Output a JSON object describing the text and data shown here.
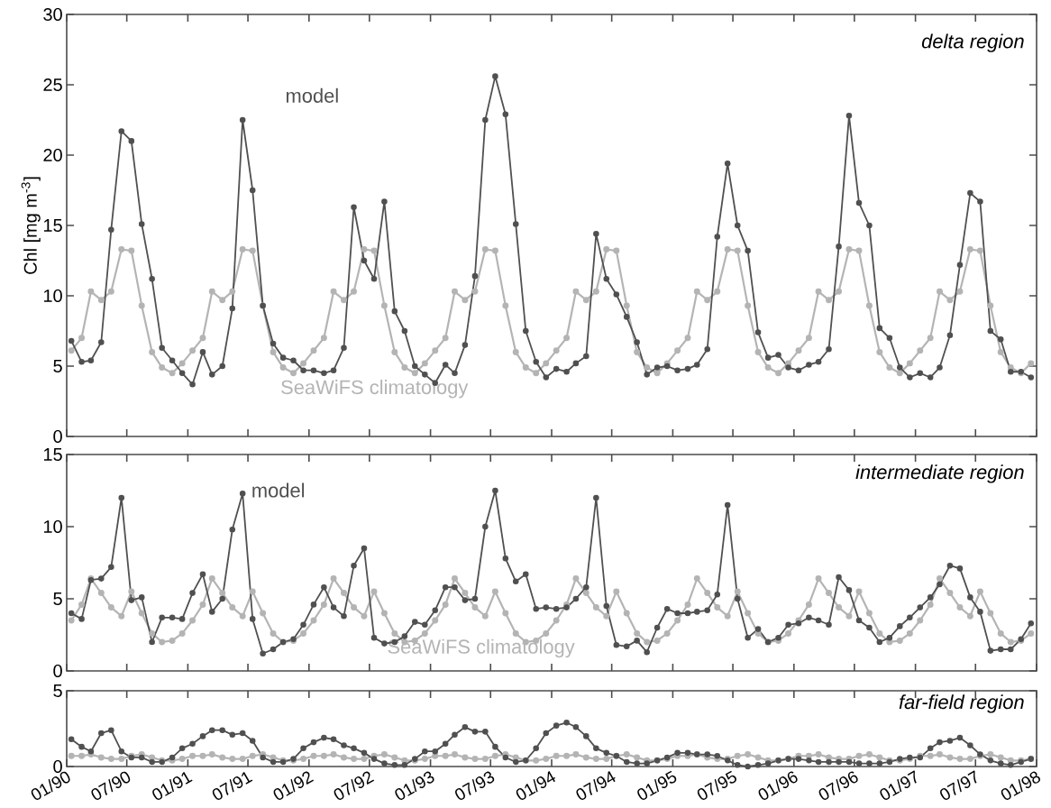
{
  "chart_data": [
    {
      "type": "line",
      "title": "delta region",
      "ylabel": "Chl [mg m$^{-3}$]",
      "marker": "circle",
      "tick_labels": "y",
      "x": [
        "1990-01-15",
        "1990-02-15",
        "1990-03-15",
        "1990-04-15",
        "1990-05-15",
        "1990-06-15",
        "1990-07-15",
        "1990-08-15",
        "1990-09-15",
        "1990-10-15",
        "1990-11-15",
        "1990-12-15",
        "1991-01-15",
        "1991-02-15",
        "1991-03-15",
        "1991-04-15",
        "1991-05-15",
        "1991-06-15",
        "1991-07-15",
        "1991-08-15",
        "1991-09-15",
        "1991-10-15",
        "1991-11-15",
        "1991-12-15",
        "1992-01-15",
        "1992-02-15",
        "1992-03-15",
        "1992-04-15",
        "1992-05-15",
        "1992-06-15",
        "1992-07-15",
        "1992-08-15",
        "1992-09-15",
        "1992-10-15",
        "1992-11-15",
        "1992-12-15",
        "1993-01-15",
        "1993-02-15",
        "1993-03-15",
        "1993-04-15",
        "1993-05-15",
        "1993-06-15",
        "1993-07-15",
        "1993-08-15",
        "1993-09-15",
        "1993-10-15",
        "1993-11-15",
        "1993-12-15",
        "1994-01-15",
        "1994-02-15",
        "1994-03-15",
        "1994-04-15",
        "1994-05-15",
        "1994-06-15",
        "1994-07-15",
        "1994-08-15",
        "1994-09-15",
        "1994-10-15",
        "1994-11-15",
        "1994-12-15",
        "1995-01-15",
        "1995-02-15",
        "1995-03-15",
        "1995-04-15",
        "1995-05-15",
        "1995-06-15",
        "1995-07-15",
        "1995-08-15",
        "1995-09-15",
        "1995-10-15",
        "1995-11-15",
        "1995-12-15",
        "1996-01-15",
        "1996-02-15",
        "1996-03-15",
        "1996-04-15",
        "1996-05-15",
        "1996-06-15",
        "1996-07-15",
        "1996-08-15",
        "1996-09-15",
        "1996-10-15",
        "1996-11-15",
        "1996-12-15",
        "1997-01-15",
        "1997-02-15",
        "1997-03-15",
        "1997-04-15",
        "1997-05-15",
        "1997-06-15",
        "1997-07-15",
        "1997-08-15",
        "1997-09-15",
        "1997-10-15",
        "1997-11-15",
        "1997-12-15"
      ],
      "xlim": [
        "1990-01-01",
        "1998-01-01"
      ],
      "xticks": [
        {
          "value": "1990-01-01",
          "label": null
        },
        {
          "value": "1990-07-01",
          "label": null
        },
        {
          "value": "1991-01-01",
          "label": null
        },
        {
          "value": "1991-07-01",
          "label": null
        },
        {
          "value": "1992-01-01",
          "label": null
        },
        {
          "value": "1992-07-01",
          "label": null
        },
        {
          "value": "1993-01-01",
          "label": null
        },
        {
          "value": "1993-07-01",
          "label": null
        },
        {
          "value": "1994-01-01",
          "label": null
        },
        {
          "value": "1994-07-01",
          "label": null
        },
        {
          "value": "1995-01-01",
          "label": null
        },
        {
          "value": "1995-07-01",
          "label": null
        },
        {
          "value": "1996-01-01",
          "label": null
        },
        {
          "value": "1996-07-01",
          "label": null
        },
        {
          "value": "1997-01-01",
          "label": null
        },
        {
          "value": "1997-07-01",
          "label": null
        },
        {
          "value": "1998-01-01",
          "label": null
        }
      ],
      "ylim": [
        0,
        30
      ],
      "yticks": [
        0,
        5,
        10,
        15,
        20,
        25,
        30
      ],
      "series": [
        {
          "name": "SeaWiFS climatology",
          "color": "#b4b4b4",
          "values": [
            6.1,
            7.0,
            10.3,
            9.7,
            10.3,
            13.3,
            13.2,
            9.3,
            6.0,
            4.9,
            4.5,
            5.2,
            6.1,
            7.0,
            10.3,
            9.7,
            10.3,
            13.3,
            13.2,
            9.3,
            6.0,
            4.9,
            4.5,
            5.2,
            6.1,
            7.0,
            10.3,
            9.7,
            10.3,
            13.3,
            13.2,
            9.3,
            6.0,
            4.9,
            4.5,
            5.2,
            6.1,
            7.0,
            10.3,
            9.7,
            10.3,
            13.3,
            13.2,
            9.3,
            6.0,
            4.9,
            4.5,
            5.2,
            6.1,
            7.0,
            10.3,
            9.7,
            10.3,
            13.3,
            13.2,
            9.3,
            6.0,
            4.9,
            4.5,
            5.2,
            6.1,
            7.0,
            10.3,
            9.7,
            10.3,
            13.3,
            13.2,
            9.3,
            6.0,
            4.9,
            4.5,
            5.2,
            6.1,
            7.0,
            10.3,
            9.7,
            10.3,
            13.3,
            13.2,
            9.3,
            6.0,
            4.9,
            4.5,
            5.2,
            6.1,
            7.0,
            10.3,
            9.7,
            10.3,
            13.3,
            13.2,
            9.3,
            6.0,
            4.9,
            4.5,
            5.2
          ]
        },
        {
          "name": "model",
          "color": "#505050",
          "values": [
            6.8,
            5.3,
            5.4,
            6.7,
            14.7,
            21.7,
            21.0,
            15.1,
            11.2,
            6.3,
            5.4,
            4.5,
            3.7,
            6.0,
            4.4,
            5.0,
            9.1,
            22.5,
            17.5,
            9.3,
            6.6,
            5.6,
            5.4,
            4.7,
            4.7,
            4.5,
            4.7,
            6.3,
            16.3,
            12.5,
            11.2,
            16.7,
            8.9,
            7.5,
            5.0,
            4.4,
            3.8,
            5.1,
            4.5,
            6.5,
            11.4,
            22.5,
            25.6,
            22.9,
            15.1,
            7.5,
            5.3,
            4.2,
            4.8,
            4.6,
            5.2,
            5.7,
            14.4,
            11.2,
            10.1,
            8.5,
            6.7,
            4.4,
            4.9,
            5.0,
            4.7,
            4.8,
            5.1,
            6.2,
            14.2,
            19.4,
            15.0,
            13.2,
            7.4,
            5.6,
            5.8,
            4.9,
            4.7,
            5.1,
            5.3,
            6.2,
            13.5,
            22.8,
            16.6,
            15.0,
            7.7,
            7.0,
            4.9,
            4.2,
            4.5,
            4.2,
            4.9,
            7.2,
            12.2,
            17.3,
            16.7,
            7.5,
            6.9,
            4.6,
            4.6,
            4.2
          ]
        }
      ]
    },
    {
      "type": "line",
      "title": "intermediate region",
      "marker": "circle",
      "tick_labels": "y",
      "x": [
        "1990-01-15",
        "1990-02-15",
        "1990-03-15",
        "1990-04-15",
        "1990-05-15",
        "1990-06-15",
        "1990-07-15",
        "1990-08-15",
        "1990-09-15",
        "1990-10-15",
        "1990-11-15",
        "1990-12-15",
        "1991-01-15",
        "1991-02-15",
        "1991-03-15",
        "1991-04-15",
        "1991-05-15",
        "1991-06-15",
        "1991-07-15",
        "1991-08-15",
        "1991-09-15",
        "1991-10-15",
        "1991-11-15",
        "1991-12-15",
        "1992-01-15",
        "1992-02-15",
        "1992-03-15",
        "1992-04-15",
        "1992-05-15",
        "1992-06-15",
        "1992-07-15",
        "1992-08-15",
        "1992-09-15",
        "1992-10-15",
        "1992-11-15",
        "1992-12-15",
        "1993-01-15",
        "1993-02-15",
        "1993-03-15",
        "1993-04-15",
        "1993-05-15",
        "1993-06-15",
        "1993-07-15",
        "1993-08-15",
        "1993-09-15",
        "1993-10-15",
        "1993-11-15",
        "1993-12-15",
        "1994-01-15",
        "1994-02-15",
        "1994-03-15",
        "1994-04-15",
        "1994-05-15",
        "1994-06-15",
        "1994-07-15",
        "1994-08-15",
        "1994-09-15",
        "1994-10-15",
        "1994-11-15",
        "1994-12-15",
        "1995-01-15",
        "1995-02-15",
        "1995-03-15",
        "1995-04-15",
        "1995-05-15",
        "1995-06-15",
        "1995-07-15",
        "1995-08-15",
        "1995-09-15",
        "1995-10-15",
        "1995-11-15",
        "1995-12-15",
        "1996-01-15",
        "1996-02-15",
        "1996-03-15",
        "1996-04-15",
        "1996-05-15",
        "1996-06-15",
        "1996-07-15",
        "1996-08-15",
        "1996-09-15",
        "1996-10-15",
        "1996-11-15",
        "1996-12-15",
        "1997-01-15",
        "1997-02-15",
        "1997-03-15",
        "1997-04-15",
        "1997-05-15",
        "1997-06-15",
        "1997-07-15",
        "1997-08-15",
        "1997-09-15",
        "1997-10-15",
        "1997-11-15",
        "1997-12-15"
      ],
      "xlim": [
        "1990-01-01",
        "1998-01-01"
      ],
      "xticks": [
        {
          "value": "1990-01-01",
          "label": null
        },
        {
          "value": "1990-07-01",
          "label": null
        },
        {
          "value": "1991-01-01",
          "label": null
        },
        {
          "value": "1991-07-01",
          "label": null
        },
        {
          "value": "1992-01-01",
          "label": null
        },
        {
          "value": "1992-07-01",
          "label": null
        },
        {
          "value": "1993-01-01",
          "label": null
        },
        {
          "value": "1993-07-01",
          "label": null
        },
        {
          "value": "1994-01-01",
          "label": null
        },
        {
          "value": "1994-07-01",
          "label": null
        },
        {
          "value": "1995-01-01",
          "label": null
        },
        {
          "value": "1995-07-01",
          "label": null
        },
        {
          "value": "1996-01-01",
          "label": null
        },
        {
          "value": "1996-07-01",
          "label": null
        },
        {
          "value": "1997-01-01",
          "label": null
        },
        {
          "value": "1997-07-01",
          "label": null
        },
        {
          "value": "1998-01-01",
          "label": null
        }
      ],
      "ylim": [
        0,
        15
      ],
      "yticks": [
        0,
        5,
        10,
        15
      ],
      "series": [
        {
          "name": "SeaWiFS climatology",
          "color": "#b4b4b4",
          "values": [
            3.5,
            4.6,
            6.4,
            5.4,
            4.4,
            3.8,
            5.5,
            4.0,
            2.6,
            2.0,
            2.1,
            2.6,
            3.5,
            4.6,
            6.4,
            5.4,
            4.4,
            3.8,
            5.5,
            4.0,
            2.6,
            2.0,
            2.1,
            2.6,
            3.5,
            4.6,
            6.4,
            5.4,
            4.4,
            3.8,
            5.5,
            4.0,
            2.6,
            2.0,
            2.1,
            2.6,
            3.5,
            4.6,
            6.4,
            5.4,
            4.4,
            3.8,
            5.5,
            4.0,
            2.6,
            2.0,
            2.1,
            2.6,
            3.5,
            4.6,
            6.4,
            5.4,
            4.4,
            3.8,
            5.5,
            4.0,
            2.6,
            2.0,
            2.1,
            2.6,
            3.5,
            4.6,
            6.4,
            5.4,
            4.4,
            3.8,
            5.5,
            4.0,
            2.6,
            2.0,
            2.1,
            2.6,
            3.5,
            4.6,
            6.4,
            5.4,
            4.4,
            3.8,
            5.5,
            4.0,
            2.6,
            2.0,
            2.1,
            2.6,
            3.5,
            4.6,
            6.4,
            5.4,
            4.4,
            3.8,
            5.5,
            4.0,
            2.6,
            2.0,
            2.1,
            2.6
          ]
        },
        {
          "name": "model",
          "color": "#505050",
          "values": [
            4.0,
            3.6,
            6.3,
            6.4,
            7.2,
            12.0,
            4.9,
            5.1,
            2.0,
            3.7,
            3.7,
            3.6,
            5.4,
            6.7,
            4.1,
            5.0,
            9.8,
            12.3,
            3.6,
            1.2,
            1.5,
            2.0,
            2.2,
            3.2,
            4.6,
            5.8,
            4.4,
            3.8,
            7.3,
            8.5,
            2.3,
            1.9,
            2.0,
            2.4,
            3.4,
            3.2,
            4.2,
            5.8,
            5.8,
            4.9,
            5.0,
            10.0,
            12.5,
            7.8,
            6.2,
            6.7,
            4.3,
            4.4,
            4.3,
            4.4,
            5.0,
            5.8,
            12.0,
            4.5,
            1.8,
            1.7,
            2.1,
            1.3,
            3.0,
            4.3,
            4.0,
            4.0,
            4.1,
            4.2,
            5.3,
            11.5,
            5.0,
            2.3,
            2.9,
            2.0,
            2.3,
            3.2,
            3.3,
            3.7,
            3.5,
            3.2,
            6.5,
            5.6,
            3.5,
            3.0,
            2.0,
            2.3,
            3.1,
            3.7,
            4.4,
            5.1,
            6.0,
            7.3,
            7.1,
            5.1,
            4.1,
            1.4,
            1.5,
            1.5,
            2.2,
            3.3
          ]
        }
      ]
    },
    {
      "type": "line",
      "title": "far-field region",
      "marker": "circle",
      "x": [
        "1990-01-15",
        "1990-02-15",
        "1990-03-15",
        "1990-04-15",
        "1990-05-15",
        "1990-06-15",
        "1990-07-15",
        "1990-08-15",
        "1990-09-15",
        "1990-10-15",
        "1990-11-15",
        "1990-12-15",
        "1991-01-15",
        "1991-02-15",
        "1991-03-15",
        "1991-04-15",
        "1991-05-15",
        "1991-06-15",
        "1991-07-15",
        "1991-08-15",
        "1991-09-15",
        "1991-10-15",
        "1991-11-15",
        "1991-12-15",
        "1992-01-15",
        "1992-02-15",
        "1992-03-15",
        "1992-04-15",
        "1992-05-15",
        "1992-06-15",
        "1992-07-15",
        "1992-08-15",
        "1992-09-15",
        "1992-10-15",
        "1992-11-15",
        "1992-12-15",
        "1993-01-15",
        "1993-02-15",
        "1993-03-15",
        "1993-04-15",
        "1993-05-15",
        "1993-06-15",
        "1993-07-15",
        "1993-08-15",
        "1993-09-15",
        "1993-10-15",
        "1993-11-15",
        "1993-12-15",
        "1994-01-15",
        "1994-02-15",
        "1994-03-15",
        "1994-04-15",
        "1994-05-15",
        "1994-06-15",
        "1994-07-15",
        "1994-08-15",
        "1994-09-15",
        "1994-10-15",
        "1994-11-15",
        "1994-12-15",
        "1995-01-15",
        "1995-02-15",
        "1995-03-15",
        "1995-04-15",
        "1995-05-15",
        "1995-06-15",
        "1995-07-15",
        "1995-08-15",
        "1995-09-15",
        "1995-10-15",
        "1995-11-15",
        "1995-12-15",
        "1996-01-15",
        "1996-02-15",
        "1996-03-15",
        "1996-04-15",
        "1996-05-15",
        "1996-06-15",
        "1996-07-15",
        "1996-08-15",
        "1996-09-15",
        "1996-10-15",
        "1996-11-15",
        "1996-12-15",
        "1997-01-15",
        "1997-02-15",
        "1997-03-15",
        "1997-04-15",
        "1997-05-15",
        "1997-06-15",
        "1997-07-15",
        "1997-08-15",
        "1997-09-15",
        "1997-10-15",
        "1997-11-15",
        "1997-12-15"
      ],
      "xlim": [
        "1990-01-01",
        "1998-01-01"
      ],
      "xticks": [
        {
          "value": "1990-01-01",
          "label": "01/90"
        },
        {
          "value": "1990-07-01",
          "label": "07/90"
        },
        {
          "value": "1991-01-01",
          "label": "01/91"
        },
        {
          "value": "1991-07-01",
          "label": "07/91"
        },
        {
          "value": "1992-01-01",
          "label": "01/92"
        },
        {
          "value": "1992-07-01",
          "label": "07/92"
        },
        {
          "value": "1993-01-01",
          "label": "01/93"
        },
        {
          "value": "1993-07-01",
          "label": "07/93"
        },
        {
          "value": "1994-01-01",
          "label": "01/94"
        },
        {
          "value": "1994-07-01",
          "label": "07/94"
        },
        {
          "value": "1995-01-01",
          "label": "01/95"
        },
        {
          "value": "1995-07-01",
          "label": "07/95"
        },
        {
          "value": "1996-01-01",
          "label": "01/96"
        },
        {
          "value": "1996-07-01",
          "label": "07/96"
        },
        {
          "value": "1997-01-01",
          "label": "01/97"
        },
        {
          "value": "1997-07-01",
          "label": "07/97"
        },
        {
          "value": "1998-01-01",
          "label": "01/98"
        }
      ],
      "ylim": [
        0,
        5
      ],
      "yticks": [
        0,
        5
      ],
      "series": [
        {
          "color": "#b4b4b4",
          "values": [
            0.7,
            0.7,
            0.8,
            0.6,
            0.5,
            0.5,
            0.7,
            0.8,
            0.6,
            0.4,
            0.4,
            0.5,
            0.7,
            0.7,
            0.8,
            0.6,
            0.5,
            0.5,
            0.7,
            0.8,
            0.6,
            0.4,
            0.4,
            0.5,
            0.7,
            0.7,
            0.8,
            0.6,
            0.5,
            0.5,
            0.7,
            0.8,
            0.6,
            0.4,
            0.4,
            0.5,
            0.7,
            0.7,
            0.8,
            0.6,
            0.5,
            0.5,
            0.7,
            0.8,
            0.6,
            0.4,
            0.4,
            0.5,
            0.7,
            0.7,
            0.8,
            0.6,
            0.5,
            0.5,
            0.7,
            0.8,
            0.6,
            0.4,
            0.4,
            0.5,
            0.7,
            0.7,
            0.8,
            0.6,
            0.5,
            0.5,
            0.7,
            0.8,
            0.6,
            0.4,
            0.4,
            0.5,
            0.7,
            0.7,
            0.8,
            0.6,
            0.5,
            0.5,
            0.7,
            0.8,
            0.6,
            0.4,
            0.4,
            0.5,
            0.7,
            0.7,
            0.8,
            0.6,
            0.5,
            0.5,
            0.7,
            0.8,
            0.6,
            0.4,
            0.4,
            0.5
          ]
        },
        {
          "color": "#505050",
          "values": [
            1.8,
            1.3,
            1.0,
            2.2,
            2.4,
            1.0,
            0.6,
            0.6,
            0.3,
            0.3,
            0.6,
            1.2,
            1.5,
            2.0,
            2.4,
            2.4,
            2.1,
            2.2,
            1.7,
            0.6,
            0.3,
            0.3,
            0.5,
            1.2,
            1.6,
            1.9,
            1.8,
            1.4,
            1.2,
            0.9,
            0.5,
            0.2,
            0.1,
            0.1,
            0.5,
            1.0,
            1.0,
            1.5,
            2.1,
            2.6,
            2.3,
            2.3,
            1.3,
            0.6,
            0.3,
            0.4,
            1.2,
            2.2,
            2.7,
            2.9,
            2.6,
            2.0,
            1.2,
            0.9,
            0.7,
            0.3,
            0.2,
            0.2,
            0.4,
            0.6,
            0.9,
            0.9,
            0.8,
            0.8,
            0.7,
            0.4,
            0.1,
            0.0,
            0.1,
            0.2,
            0.4,
            0.5,
            0.5,
            0.4,
            0.3,
            0.3,
            0.3,
            0.3,
            0.2,
            0.2,
            0.2,
            0.3,
            0.5,
            0.6,
            0.6,
            1.2,
            1.6,
            1.7,
            1.9,
            1.4,
            0.8,
            0.4,
            0.2,
            0.1,
            0.3,
            0.5
          ]
        }
      ]
    }
  ]
}
